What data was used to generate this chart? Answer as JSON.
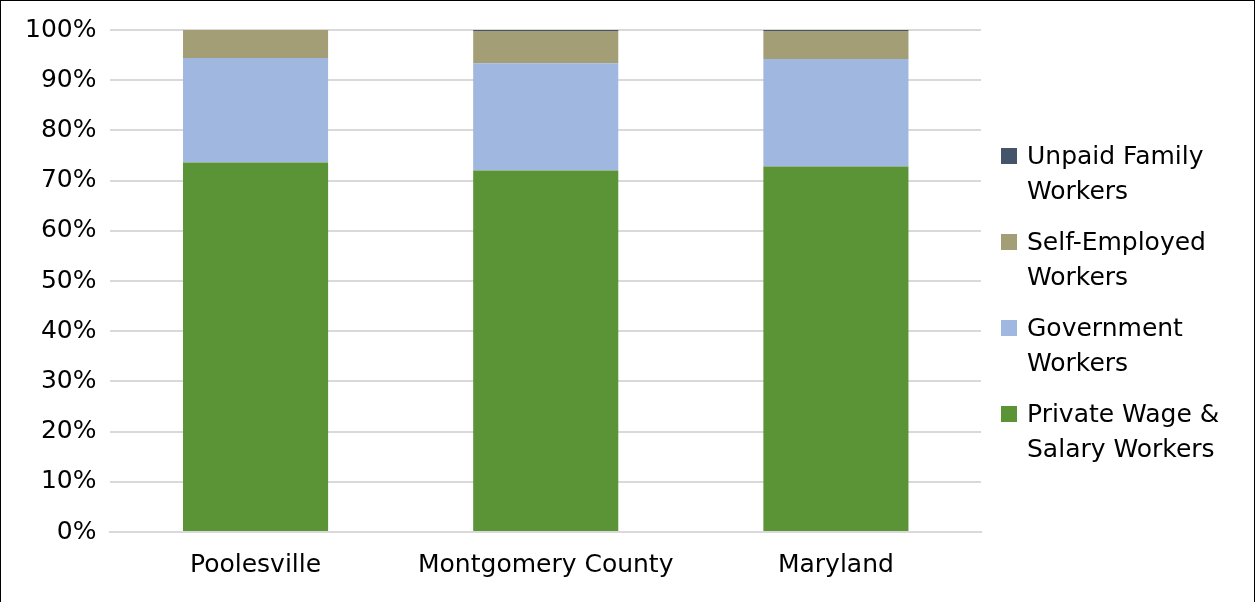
{
  "chart_data": {
    "type": "bar",
    "stacked": true,
    "categories": [
      "Poolesville",
      "Montgomery County",
      "Maryland"
    ],
    "series": [
      {
        "name": "Private Wage & Salary Workers",
        "color": "#5b9337",
        "values": [
          73.6,
          72.0,
          72.8
        ]
      },
      {
        "name": "Government Workers",
        "color": "#a0b7e0",
        "values": [
          20.8,
          21.4,
          21.4
        ]
      },
      {
        "name": "Self-Employed Workers",
        "color": "#a49e76",
        "values": [
          5.6,
          6.4,
          5.6
        ]
      },
      {
        "name": "Unpaid Family Workers",
        "color": "#44546a",
        "values": [
          0,
          0.2,
          0.2
        ]
      }
    ],
    "ylim": [
      0,
      100
    ],
    "yticks": [
      {
        "value": 0,
        "label": "0%"
      },
      {
        "value": 10,
        "label": "10%"
      },
      {
        "value": 20,
        "label": "20%"
      },
      {
        "value": 30,
        "label": "30%"
      },
      {
        "value": 40,
        "label": "40%"
      },
      {
        "value": 50,
        "label": "50%"
      },
      {
        "value": 60,
        "label": "60%"
      },
      {
        "value": 70,
        "label": "70%"
      },
      {
        "value": 80,
        "label": "80%"
      },
      {
        "value": 90,
        "label": "90%"
      },
      {
        "value": 100,
        "label": "100%"
      }
    ],
    "grid": "y",
    "legend": "right"
  }
}
